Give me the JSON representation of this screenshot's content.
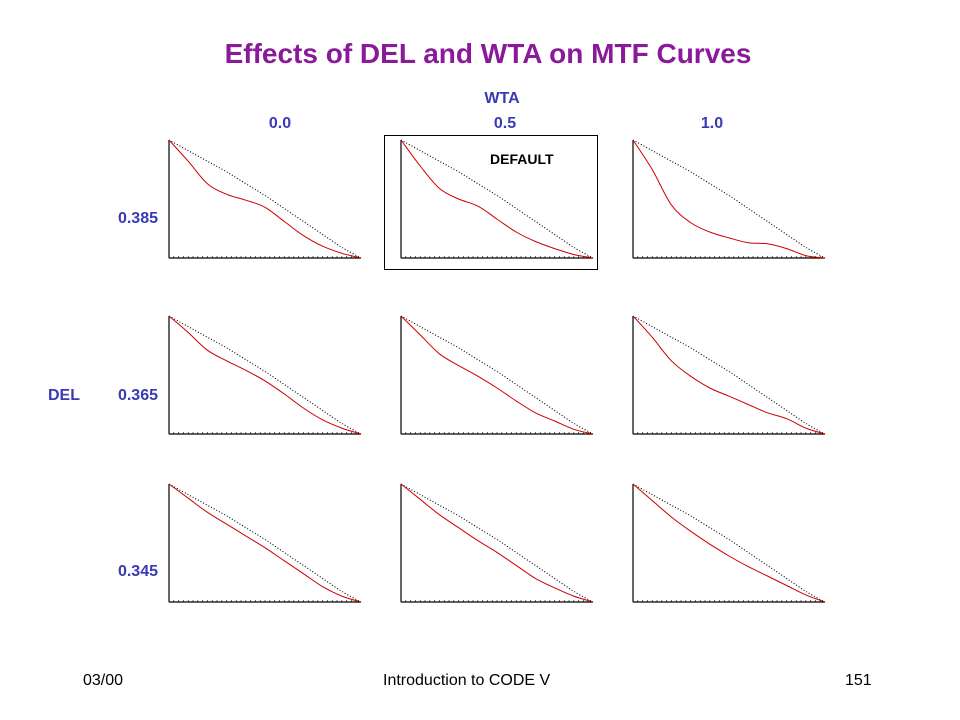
{
  "slide": {
    "title": "Effects of DEL and WTA on MTF Curves",
    "footer_left": "03/00",
    "footer_center": "Introduction to CODE V",
    "footer_right": "151"
  },
  "colors": {
    "title": "#8a1a9a",
    "labels": "#3a3ab4",
    "curve": "#cc0000",
    "reference": "#000000"
  },
  "chart_data": {
    "type": "line",
    "title": "Effects of DEL and WTA on MTF Curves",
    "col_axis_label": "WTA",
    "row_axis_label": "DEL",
    "col_values": [
      "0.0",
      "0.5",
      "1.0"
    ],
    "row_values": [
      "0.385",
      "0.365",
      "0.345"
    ],
    "default_label": "DEFAULT",
    "default_cell": {
      "row": 0,
      "col": 1
    },
    "x": [
      0,
      0.1,
      0.2,
      0.3,
      0.4,
      0.5,
      0.6,
      0.7,
      0.8,
      0.9,
      1.0
    ],
    "reference_line": [
      1.0,
      0.91,
      0.82,
      0.73,
      0.63,
      0.53,
      0.42,
      0.31,
      0.2,
      0.09,
      0.0
    ],
    "cells": [
      [
        {
          "values": [
            1.0,
            0.82,
            0.63,
            0.54,
            0.49,
            0.43,
            0.31,
            0.19,
            0.1,
            0.04,
            0.0
          ]
        },
        {
          "values": [
            1.0,
            0.78,
            0.59,
            0.5,
            0.44,
            0.33,
            0.22,
            0.14,
            0.08,
            0.03,
            0.0
          ]
        },
        {
          "values": [
            1.0,
            0.75,
            0.45,
            0.3,
            0.22,
            0.17,
            0.13,
            0.12,
            0.08,
            0.02,
            0.0
          ]
        }
      ],
      [
        {
          "values": [
            1.0,
            0.86,
            0.71,
            0.62,
            0.54,
            0.45,
            0.34,
            0.22,
            0.12,
            0.05,
            0.0
          ]
        },
        {
          "values": [
            1.0,
            0.84,
            0.68,
            0.58,
            0.49,
            0.39,
            0.28,
            0.18,
            0.11,
            0.04,
            0.0
          ]
        },
        {
          "values": [
            1.0,
            0.82,
            0.62,
            0.49,
            0.39,
            0.32,
            0.25,
            0.18,
            0.13,
            0.05,
            0.0
          ]
        }
      ],
      [
        {
          "values": [
            1.0,
            0.88,
            0.76,
            0.66,
            0.56,
            0.46,
            0.35,
            0.24,
            0.13,
            0.05,
            0.0
          ]
        },
        {
          "values": [
            1.0,
            0.87,
            0.74,
            0.63,
            0.52,
            0.42,
            0.31,
            0.2,
            0.12,
            0.05,
            0.0
          ]
        },
        {
          "values": [
            1.0,
            0.86,
            0.72,
            0.6,
            0.49,
            0.39,
            0.3,
            0.22,
            0.14,
            0.06,
            0.0
          ]
        }
      ]
    ]
  }
}
